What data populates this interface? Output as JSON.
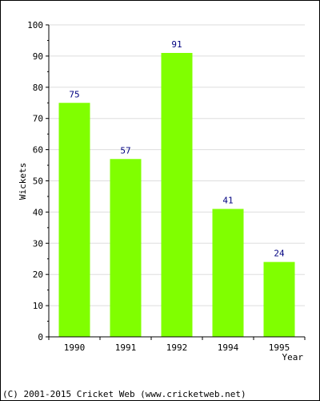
{
  "chart_data": {
    "type": "bar",
    "title": "",
    "xlabel": "Year",
    "ylabel": "Wickets",
    "categories": [
      "1990",
      "1991",
      "1992",
      "1994",
      "1995"
    ],
    "values": [
      75,
      57,
      91,
      41,
      24
    ],
    "data_labels": [
      "75",
      "57",
      "91",
      "41",
      "24"
    ],
    "ylim": [
      0,
      100
    ],
    "yticks": [
      0,
      10,
      20,
      30,
      40,
      50,
      60,
      70,
      80,
      90,
      100
    ],
    "ytick_labels": [
      "0",
      "10",
      "20",
      "30",
      "40",
      "50",
      "60",
      "70",
      "80",
      "90",
      "100"
    ],
    "grid": true,
    "legend": "none",
    "colors": {
      "bar": "#80ff00",
      "data_label": "#000080",
      "axis": "#000000",
      "grid": "#dddddd",
      "text": "#000000"
    }
  },
  "footer": {
    "copyright": "(C) 2001-2015 Cricket Web (www.cricketweb.net)"
  }
}
